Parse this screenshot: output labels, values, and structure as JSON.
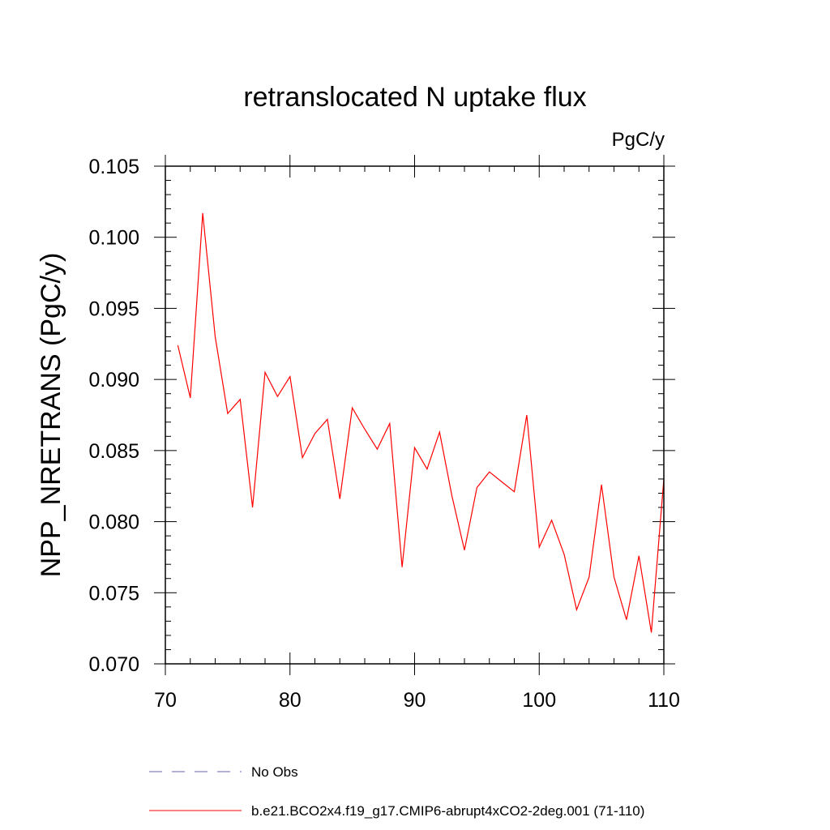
{
  "chart_data": {
    "type": "line",
    "title": "retranslocated N uptake flux",
    "units_label": "PgC/y",
    "xlabel": "",
    "ylabel": "NPP_NRETRANS  (PgC/y)",
    "xlim": [
      70,
      110
    ],
    "ylim": [
      0.07,
      0.105
    ],
    "x_ticks": [
      70,
      80,
      90,
      100,
      110
    ],
    "x_tick_labels": [
      "70",
      "80",
      "90",
      "100",
      "110"
    ],
    "y_ticks": [
      0.07,
      0.075,
      0.08,
      0.085,
      0.09,
      0.095,
      0.1,
      0.105
    ],
    "y_tick_labels": [
      "0.070",
      "0.075",
      "0.080",
      "0.085",
      "0.090",
      "0.095",
      "0.100",
      "0.105"
    ],
    "grid": false,
    "series": [
      {
        "name": "b.e21.BCO2x4.f19_g17.CMIP6-abrupt4xCO2-2deg.001 (71-110)",
        "color": "#ff0000",
        "dash": "solid",
        "x": [
          71,
          72,
          73,
          74,
          75,
          76,
          77,
          78,
          79,
          80,
          81,
          82,
          83,
          84,
          85,
          86,
          87,
          88,
          89,
          90,
          91,
          92,
          93,
          94,
          95,
          96,
          97,
          98,
          99,
          100,
          101,
          102,
          103,
          104,
          105,
          106,
          107,
          108,
          109,
          110
        ],
        "values": [
          0.0924,
          0.0887,
          0.1017,
          0.093,
          0.0876,
          0.0886,
          0.081,
          0.0905,
          0.0888,
          0.0902,
          0.0845,
          0.0862,
          0.0872,
          0.0816,
          0.088,
          0.0865,
          0.0851,
          0.0869,
          0.0768,
          0.0852,
          0.0837,
          0.0863,
          0.0818,
          0.078,
          0.0824,
          0.0835,
          0.0828,
          0.0821,
          0.0875,
          0.0782,
          0.0801,
          0.0777,
          0.0738,
          0.0761,
          0.0826,
          0.0761,
          0.0731,
          0.0776,
          0.0722,
          0.083
        ]
      }
    ],
    "legend": {
      "placement": "bottom",
      "entries": [
        {
          "label": "No Obs",
          "color": "#6666bb",
          "dash": "dashed"
        },
        {
          "label": "b.e21.BCO2x4.f19_g17.CMIP6-abrupt4xCO2-2deg.001 (71-110)",
          "color": "#ff0000",
          "dash": "solid"
        }
      ]
    }
  }
}
